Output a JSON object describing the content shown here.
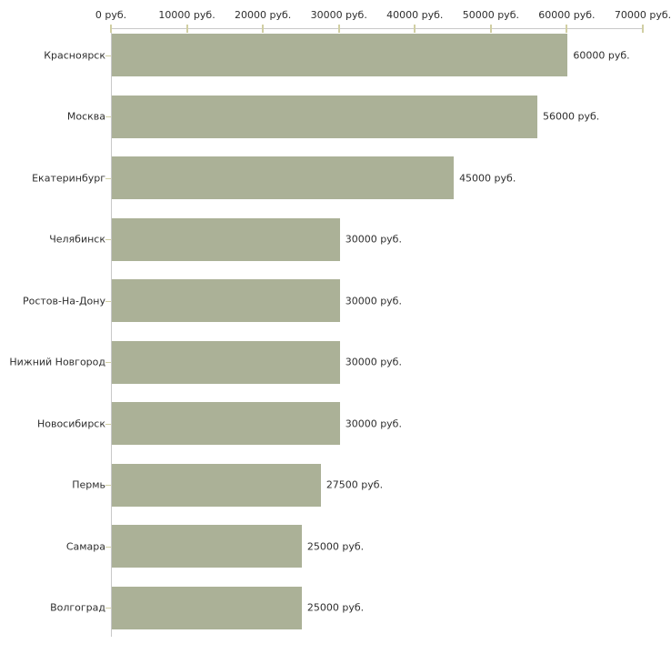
{
  "chart_data": {
    "type": "bar",
    "orientation": "horizontal",
    "title": "",
    "xlabel": "",
    "ylabel": "",
    "xlim": [
      0,
      70000
    ],
    "grid": false,
    "legend": false,
    "categories": [
      "Красноярск",
      "Москва",
      "Екатеринбург",
      "Челябинск",
      "Ростов-На-Дону",
      "Нижний Новгород",
      "Новосибирск",
      "Пермь",
      "Самара",
      "Волгоград"
    ],
    "values": [
      60000,
      56000,
      45000,
      30000,
      30000,
      30000,
      30000,
      27500,
      25000,
      25000
    ],
    "value_labels": [
      "60000 руб.",
      "56000 руб.",
      "45000 руб.",
      "30000 руб.",
      "30000 руб.",
      "30000 руб.",
      "30000 руб.",
      "27500 руб.",
      "25000 руб.",
      "25000 руб."
    ],
    "x_ticks": [
      {
        "value": 0,
        "label": "0 руб."
      },
      {
        "value": 10000,
        "label": "10000 руб."
      },
      {
        "value": 20000,
        "label": "20000 руб."
      },
      {
        "value": 30000,
        "label": "30000 руб."
      },
      {
        "value": 40000,
        "label": "40000 руб."
      },
      {
        "value": 50000,
        "label": "50000 руб."
      },
      {
        "value": 60000,
        "label": "60000 руб."
      },
      {
        "value": 70000,
        "label": "70000 руб."
      }
    ],
    "colors": {
      "bar_fill": "#abb197",
      "axis_line": "#c8c8c8",
      "tick_mark": "#d1cfa3",
      "text": "#2e2e2e",
      "background": "#ffffff"
    }
  }
}
